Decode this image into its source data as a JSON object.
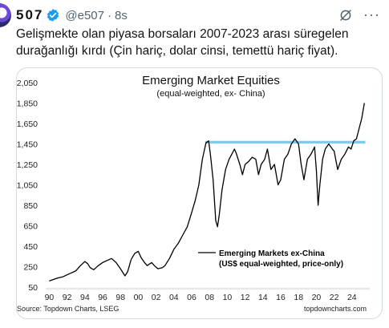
{
  "post": {
    "display_name": "507",
    "handle": "@e507",
    "separator": "·",
    "time": "8s",
    "text": "Gelişmekte olan piyasa borsaları 2007-2023 arası süregelen durağanlığı kırdı (Çin hariç, dolar cinsi, temettü hariç fiyat).",
    "more_label": "···"
  },
  "icons": {
    "verified": "verified-badge-icon",
    "grok": "grok-icon",
    "more": "more-icon",
    "accent": "#1d9bf0"
  },
  "chart_data": {
    "type": "line",
    "title": "Emerging Market Equities",
    "subtitle": "(equal-weighted, ex- China)",
    "xlabel": "",
    "ylabel": "",
    "xlim": [
      1989.6,
      2026
    ],
    "ylim": [
      50,
      2050
    ],
    "y_ticks": [
      "2,050",
      "1,850",
      "1,650",
      "1,450",
      "1,250",
      "1,050",
      "850",
      "650",
      "450",
      "250",
      "50"
    ],
    "y_tick_values": [
      2050,
      1850,
      1650,
      1450,
      1250,
      1050,
      850,
      650,
      450,
      250,
      50
    ],
    "x_ticks": [
      "90",
      "92",
      "94",
      "96",
      "98",
      "00",
      "02",
      "04",
      "06",
      "08",
      "10",
      "12",
      "14",
      "16",
      "18",
      "20",
      "22",
      "24"
    ],
    "x_tick_values": [
      1990,
      1992,
      1994,
      1996,
      1998,
      2000,
      2002,
      2004,
      2006,
      2008,
      2010,
      2012,
      2014,
      2016,
      2018,
      2020,
      2022,
      2024
    ],
    "grid": false,
    "legend_position": "lower-right",
    "series": [
      {
        "name": "Emerging Markets ex-China (US$ equal-weighted, price-only)",
        "color": "#000000",
        "x": [
          1990.0,
          1990.5,
          1991.0,
          1991.5,
          1992.0,
          1992.5,
          1993.0,
          1993.5,
          1994.0,
          1994.3,
          1994.6,
          1995.0,
          1995.5,
          1996.0,
          1996.5,
          1997.0,
          1997.5,
          1998.0,
          1998.5,
          1998.8,
          1999.2,
          1999.6,
          2000.0,
          2000.3,
          2000.7,
          2001.0,
          2001.5,
          2001.8,
          2002.2,
          2002.7,
          2003.0,
          2003.5,
          2004.0,
          2004.5,
          2005.0,
          2005.5,
          2006.0,
          2006.4,
          2006.8,
          2007.2,
          2007.6,
          2007.9,
          2008.1,
          2008.4,
          2008.7,
          2008.9,
          2009.1,
          2009.4,
          2009.8,
          2010.2,
          2010.5,
          2010.8,
          2011.0,
          2011.4,
          2011.7,
          2012.0,
          2012.4,
          2012.8,
          2013.2,
          2013.5,
          2013.8,
          2014.2,
          2014.5,
          2014.9,
          2015.3,
          2015.7,
          2016.0,
          2016.4,
          2016.8,
          2017.2,
          2017.6,
          2018.0,
          2018.3,
          2018.6,
          2019.0,
          2019.4,
          2019.8,
          2020.0,
          2020.2,
          2020.4,
          2020.7,
          2021.0,
          2021.4,
          2021.8,
          2022.0,
          2022.4,
          2022.8,
          2023.2,
          2023.6,
          2023.9,
          2024.2,
          2024.5,
          2024.8,
          2025.1,
          2025.4
        ],
        "y": [
          110,
          125,
          140,
          150,
          170,
          190,
          210,
          260,
          300,
          280,
          240,
          220,
          260,
          290,
          310,
          330,
          290,
          230,
          160,
          200,
          320,
          380,
          400,
          340,
          290,
          260,
          290,
          260,
          230,
          240,
          260,
          330,
          420,
          480,
          560,
          640,
          780,
          900,
          1050,
          1300,
          1460,
          1480,
          1350,
          1100,
          700,
          640,
          760,
          1000,
          1200,
          1300,
          1350,
          1400,
          1360,
          1250,
          1150,
          1250,
          1280,
          1320,
          1300,
          1150,
          1250,
          1300,
          1400,
          1200,
          1250,
          1050,
          1100,
          1300,
          1350,
          1450,
          1500,
          1450,
          1250,
          1100,
          1300,
          1350,
          1420,
          1200,
          850,
          1050,
          1300,
          1400,
          1450,
          1400,
          1380,
          1200,
          1300,
          1350,
          1420,
          1400,
          1480,
          1500,
          1600,
          1700,
          1850
        ]
      }
    ],
    "reference_band": {
      "from": 1455,
      "to": 1480,
      "x_from": 2007.5,
      "x_to": 2025.5,
      "color": "#6cc3e8"
    },
    "source_left": "Source: Topdown Charts, LSEG",
    "source_right": "topdowncharts.com"
  }
}
